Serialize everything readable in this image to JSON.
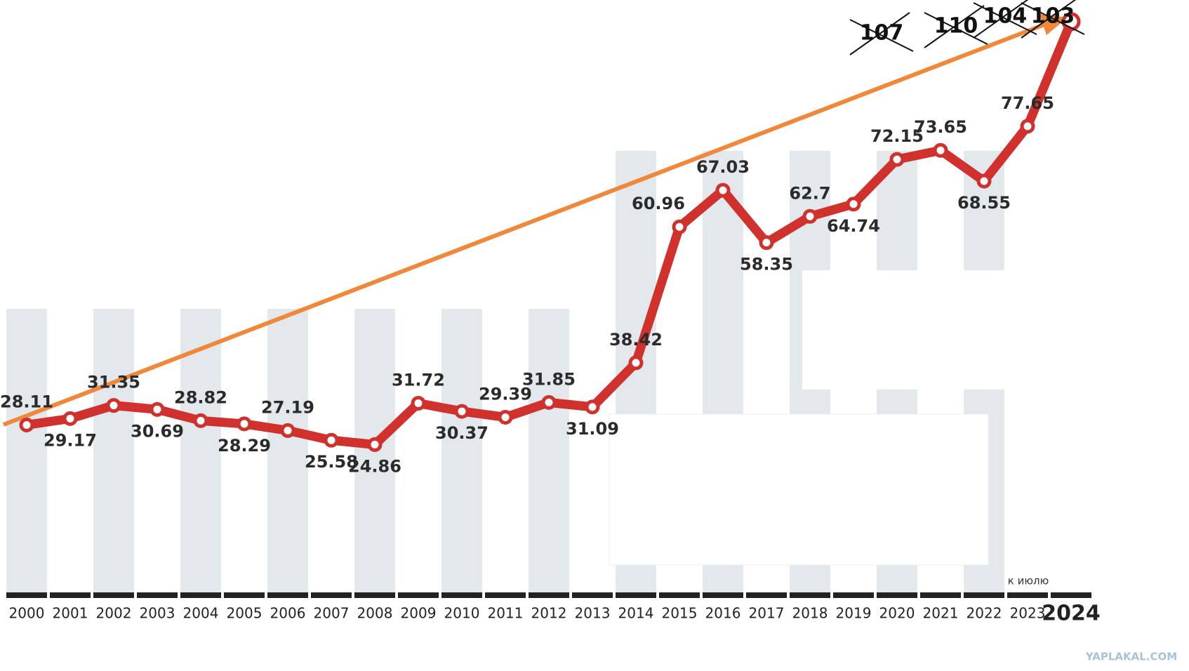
{
  "chart_data": {
    "type": "line",
    "categories": [
      "2000",
      "2001",
      "2002",
      "2003",
      "2004",
      "2005",
      "2006",
      "2007",
      "2008",
      "2009",
      "2010",
      "2011",
      "2012",
      "2013",
      "2014",
      "2015",
      "2016",
      "2017",
      "2018",
      "2019",
      "2020",
      "2021",
      "2022",
      "2023",
      "2024"
    ],
    "series": [
      {
        "color": "#d0312d",
        "values": [
          28.11,
          29.17,
          31.35,
          30.69,
          28.82,
          28.29,
          27.19,
          25.58,
          24.86,
          31.72,
          30.37,
          29.39,
          31.85,
          31.09,
          38.42,
          60.96,
          67.03,
          58.35,
          62.7,
          64.74,
          72.15,
          73.65,
          68.55,
          77.65,
          95
        ]
      }
    ],
    "ylim": [
      0,
      98
    ],
    "annotations": [
      "к июлю",
      "107",
      "110",
      "104",
      "103",
      "YAPLAKAL.COM"
    ],
    "trend_color": "#f0883a"
  }
}
